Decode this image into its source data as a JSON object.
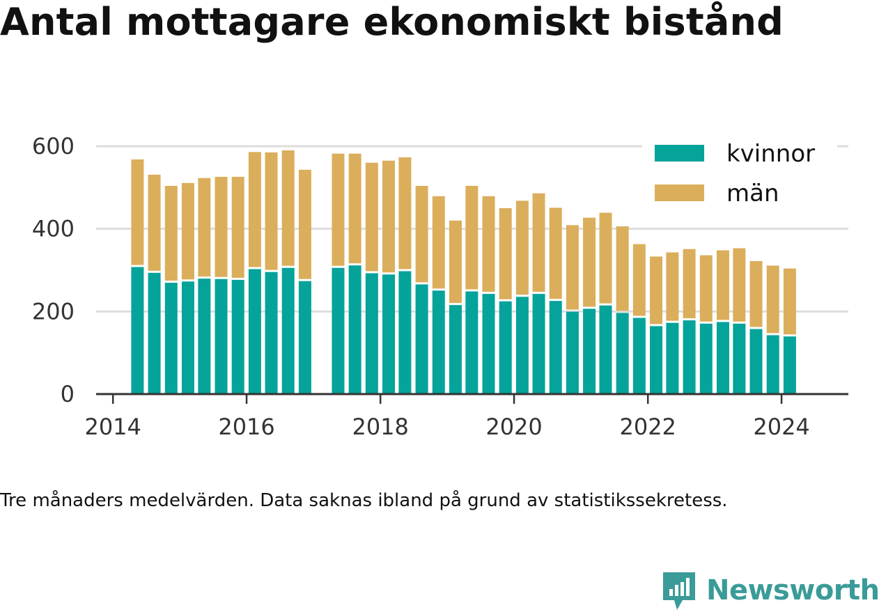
{
  "title": "Antal mottagare ekonomiskt bistånd",
  "caption": "Tre månaders medelvärden. Data saknas ibland på grund av statistikssekretess.",
  "brand": {
    "name": "Newsworthy",
    "color": "#3a9b98",
    "icon": "newsworthy-logo-icon"
  },
  "colors": {
    "kvinnor": "#05a39a",
    "man": "#dbae5c",
    "grid": "#dddddd",
    "axis": "#333333"
  },
  "chart_data": {
    "type": "bar",
    "stacked": true,
    "title": "Antal mottagare ekonomiskt bistånd",
    "xlabel": "",
    "ylabel": "",
    "ylim": [
      0,
      600
    ],
    "xlim": [
      "2013-10-01",
      "2024-12-31"
    ],
    "yticks": [
      0,
      200,
      400,
      600
    ],
    "xticks": [
      "2014",
      "2016",
      "2018",
      "2020",
      "2022",
      "2024"
    ],
    "grid": true,
    "legend_position": "top-right",
    "x": [
      "2014-05",
      "2014-08",
      "2014-11",
      "2015-02",
      "2015-05",
      "2015-08",
      "2015-11",
      "2016-02",
      "2016-05",
      "2016-08",
      "2016-11",
      "2017-05",
      "2017-08",
      "2017-11",
      "2018-02",
      "2018-05",
      "2018-08",
      "2018-11",
      "2019-02",
      "2019-05",
      "2019-08",
      "2019-11",
      "2020-02",
      "2020-05",
      "2020-08",
      "2020-11",
      "2021-02",
      "2021-05",
      "2021-08",
      "2021-11",
      "2022-02",
      "2022-05",
      "2022-08",
      "2022-11",
      "2023-02",
      "2023-05",
      "2023-08",
      "2023-11",
      "2024-02"
    ],
    "series": [
      {
        "name": "kvinnor",
        "values": [
          310,
          296,
          272,
          275,
          282,
          281,
          279,
          305,
          298,
          308,
          276,
          308,
          314,
          295,
          292,
          300,
          268,
          253,
          218,
          251,
          245,
          227,
          238,
          245,
          228,
          202,
          209,
          217,
          199,
          187,
          167,
          175,
          181,
          173,
          177,
          173,
          160,
          145,
          142
        ]
      },
      {
        "name": "män",
        "values": [
          258,
          235,
          232,
          236,
          241,
          245,
          247,
          281,
          287,
          282,
          267,
          274,
          268,
          265,
          273,
          273,
          236,
          226,
          202,
          253,
          234,
          223,
          230,
          241,
          223,
          207,
          218,
          222,
          207,
          176,
          166,
          168,
          170,
          163,
          171,
          180,
          162,
          166,
          162
        ]
      }
    ]
  }
}
